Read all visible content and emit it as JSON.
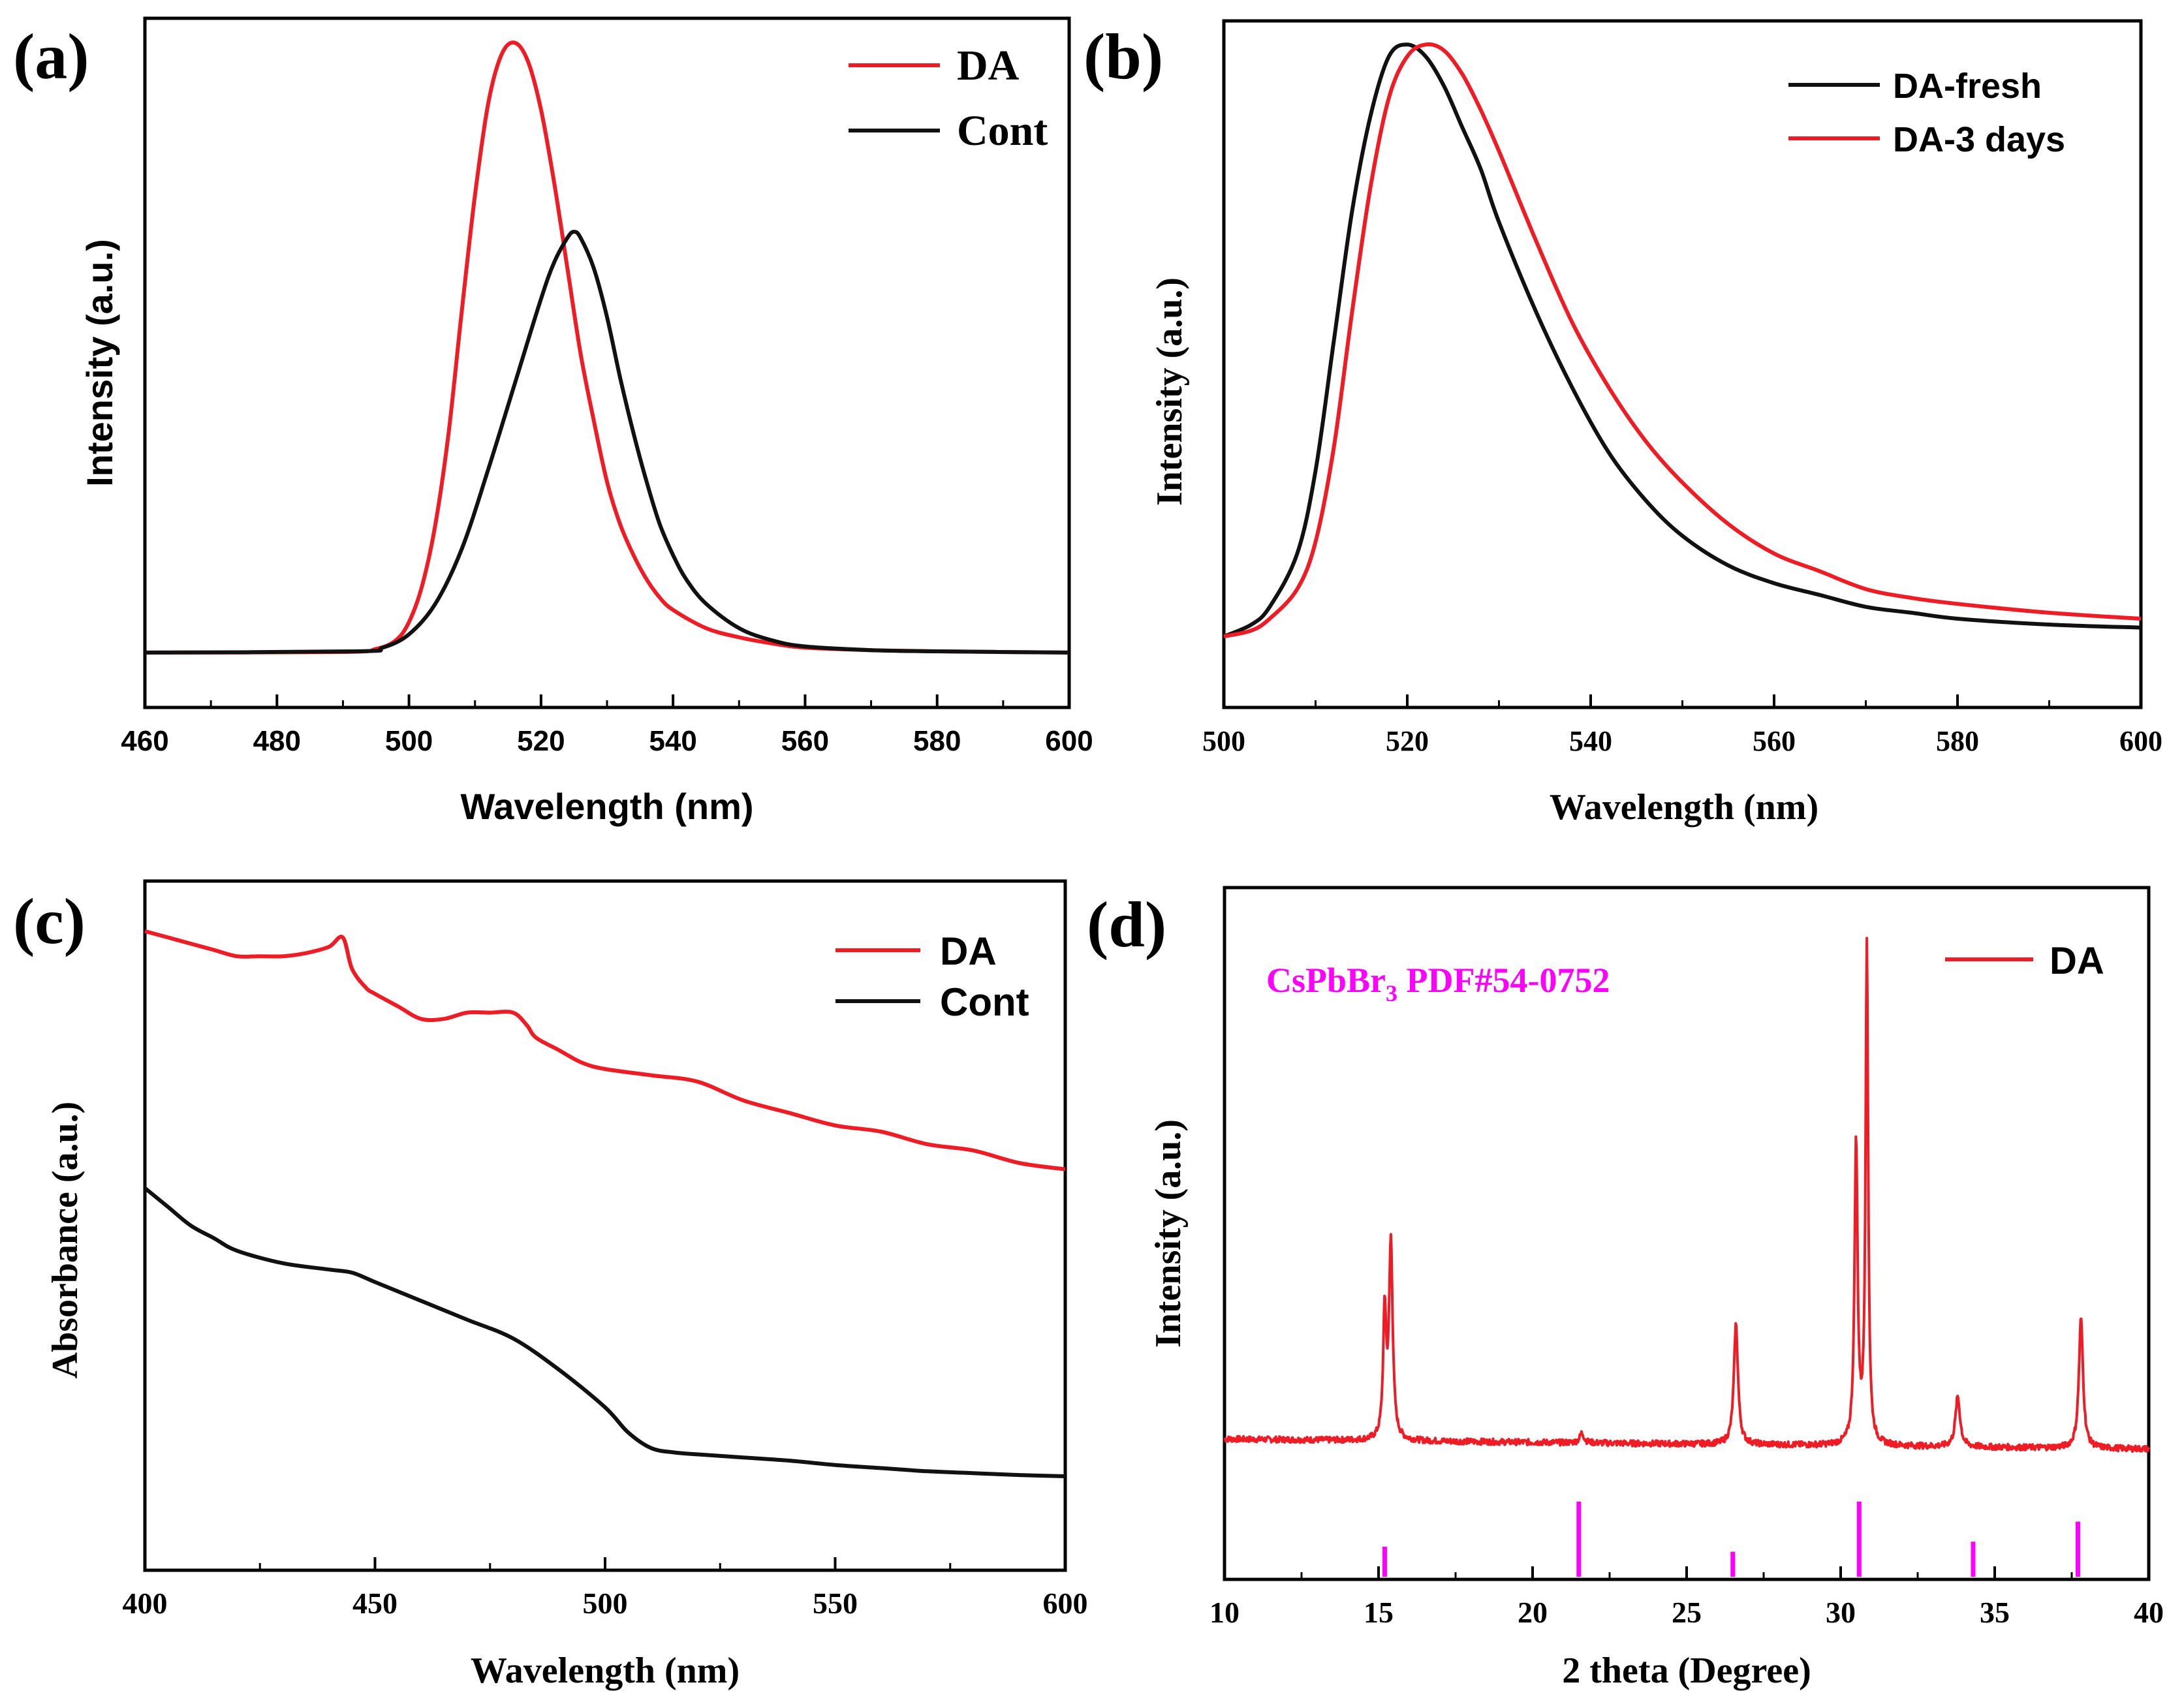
{
  "chart_data": [
    {
      "type": "line",
      "panel_label": "(a)",
      "xlabel": "Wavelength (nm)",
      "ylabel": "Intensity (a.u.)",
      "xlim": [
        460,
        600
      ],
      "ylim": [
        -0.09,
        1.04
      ],
      "xticks": [
        460,
        480,
        500,
        520,
        540,
        560,
        580,
        600
      ],
      "series": [
        {
          "name": "DA",
          "color": "#ee1c25",
          "x": [
            460,
            490,
            495,
            498,
            500,
            502,
            504,
            506,
            508,
            510,
            512,
            514,
            516,
            518,
            520,
            522,
            524,
            526,
            528,
            530,
            532,
            534,
            536,
            538,
            540,
            545,
            550,
            555,
            560,
            570,
            580,
            600
          ],
          "y": [
            0,
            0.001,
            0.006,
            0.02,
            0.05,
            0.11,
            0.21,
            0.36,
            0.56,
            0.75,
            0.9,
            0.98,
            1.0,
            0.97,
            0.89,
            0.77,
            0.63,
            0.49,
            0.38,
            0.28,
            0.21,
            0.16,
            0.12,
            0.09,
            0.07,
            0.04,
            0.025,
            0.015,
            0.008,
            0.004,
            0.002,
            0.0
          ]
        },
        {
          "name": "Cont",
          "color": "#111111",
          "x": [
            460,
            492,
            496,
            500,
            504,
            508,
            512,
            516,
            520,
            522,
            524,
            525,
            526,
            528,
            530,
            532,
            534,
            536,
            538,
            540,
            542,
            545,
            550,
            555,
            560,
            570,
            580,
            600
          ],
          "y": [
            0,
            0.002,
            0.008,
            0.03,
            0.08,
            0.17,
            0.3,
            0.44,
            0.58,
            0.64,
            0.68,
            0.69,
            0.68,
            0.63,
            0.55,
            0.45,
            0.36,
            0.28,
            0.21,
            0.16,
            0.12,
            0.08,
            0.04,
            0.02,
            0.01,
            0.004,
            0.002,
            0.0
          ]
        }
      ]
    },
    {
      "type": "line",
      "panel_label": "(b)",
      "xlabel": "Wavelength (nm)",
      "ylabel": "Intensity (a.u.)",
      "xlim": [
        500,
        600
      ],
      "ylim": [
        -0.12,
        1.04
      ],
      "xticks": [
        500,
        520,
        540,
        560,
        580,
        600
      ],
      "series": [
        {
          "name": "DA-fresh",
          "color": "#111111",
          "x": [
            500,
            503,
            505,
            508,
            510,
            512,
            514,
            516,
            518,
            520,
            522,
            524,
            526,
            528,
            530,
            534,
            538,
            542,
            546,
            550,
            555,
            560,
            565,
            570,
            575,
            580,
            590,
            600
          ],
          "y": [
            0.0,
            0.02,
            0.05,
            0.14,
            0.28,
            0.5,
            0.72,
            0.88,
            0.98,
            1.0,
            0.98,
            0.93,
            0.86,
            0.79,
            0.7,
            0.55,
            0.42,
            0.31,
            0.23,
            0.17,
            0.12,
            0.09,
            0.07,
            0.05,
            0.04,
            0.03,
            0.02,
            0.015
          ]
        },
        {
          "name": "DA-3 days",
          "color": "#ee1c25",
          "x": [
            500,
            503,
            505,
            508,
            510,
            512,
            514,
            516,
            518,
            520,
            522,
            524,
            526,
            528,
            530,
            534,
            538,
            542,
            546,
            550,
            555,
            560,
            565,
            570,
            575,
            580,
            590,
            600
          ],
          "y": [
            0.0,
            0.01,
            0.03,
            0.08,
            0.16,
            0.32,
            0.55,
            0.76,
            0.91,
            0.98,
            1.0,
            0.99,
            0.95,
            0.89,
            0.82,
            0.67,
            0.53,
            0.42,
            0.33,
            0.26,
            0.19,
            0.14,
            0.11,
            0.08,
            0.065,
            0.055,
            0.04,
            0.03
          ]
        }
      ]
    },
    {
      "type": "line",
      "panel_label": "(c)",
      "xlabel": "Wavelength (nm)",
      "ylabel": "Absorbance (a.u.)",
      "xlim": [
        400,
        600
      ],
      "ylim": [
        -0.02,
        1.08
      ],
      "xticks": [
        400,
        450,
        500,
        550,
        600
      ],
      "series": [
        {
          "name": "DA",
          "color": "#ee1c25",
          "x": [
            400,
            405,
            410,
            415,
            420,
            425,
            430,
            435,
            440,
            443,
            445,
            448,
            450,
            455,
            460,
            465,
            470,
            475,
            480,
            483,
            485,
            490,
            495,
            500,
            510,
            520,
            530,
            540,
            550,
            560,
            570,
            580,
            590,
            600
          ],
          "y": [
            1.0,
            0.99,
            0.98,
            0.97,
            0.96,
            0.96,
            0.96,
            0.965,
            0.975,
            0.99,
            0.94,
            0.91,
            0.9,
            0.88,
            0.86,
            0.86,
            0.87,
            0.87,
            0.87,
            0.85,
            0.83,
            0.81,
            0.79,
            0.78,
            0.77,
            0.76,
            0.73,
            0.71,
            0.69,
            0.68,
            0.66,
            0.65,
            0.63,
            0.62
          ]
        },
        {
          "name": "Cont",
          "color": "#111111",
          "x": [
            400,
            405,
            410,
            415,
            420,
            430,
            440,
            445,
            450,
            460,
            470,
            480,
            490,
            500,
            505,
            510,
            515,
            520,
            530,
            540,
            550,
            560,
            570,
            580,
            590,
            600
          ],
          "y": [
            0.59,
            0.56,
            0.53,
            0.51,
            0.49,
            0.47,
            0.46,
            0.455,
            0.44,
            0.41,
            0.38,
            0.35,
            0.3,
            0.24,
            0.2,
            0.175,
            0.168,
            0.165,
            0.16,
            0.155,
            0.148,
            0.143,
            0.138,
            0.135,
            0.132,
            0.13
          ]
        }
      ]
    },
    {
      "type": "line",
      "panel_label": "(d)",
      "xlabel": "2 theta (Degree)",
      "ylabel": "Intensity (a.u.)",
      "xlim": [
        10,
        40
      ],
      "ylim": [
        -0.28,
        1.1
      ],
      "xticks": [
        10,
        15,
        20,
        25,
        30,
        35,
        40
      ],
      "annotation": {
        "text_main": "CsPbBr",
        "text_sub": "3",
        "text_rest": " PDF#54-0752",
        "color": "#ff00ff"
      },
      "series": [
        {
          "name": "DA",
          "color": "#ee1c25",
          "peaks": [
            {
              "x": 15.2,
              "h": 0.25,
              "w": 0.06
            },
            {
              "x": 15.4,
              "h": 0.39,
              "w": 0.07
            },
            {
              "x": 21.6,
              "h": 0.02,
              "w": 0.08
            },
            {
              "x": 26.6,
              "h": 0.24,
              "w": 0.08
            },
            {
              "x": 30.5,
              "h": 0.6,
              "w": 0.06
            },
            {
              "x": 30.85,
              "h": 0.99,
              "w": 0.05
            },
            {
              "x": 33.8,
              "h": 0.1,
              "w": 0.09
            },
            {
              "x": 37.8,
              "h": 0.26,
              "w": 0.08
            }
          ],
          "baseline_start": 0.0,
          "baseline_end": -0.02
        }
      ],
      "reference_lines": {
        "name": "CsPbBr3 PDF#54-0752",
        "color": "#ff00ff",
        "x": [
          15.2,
          21.5,
          26.5,
          30.6,
          34.3,
          37.7
        ],
        "h": [
          0.06,
          0.15,
          0.05,
          0.15,
          0.07,
          0.11
        ]
      }
    }
  ]
}
